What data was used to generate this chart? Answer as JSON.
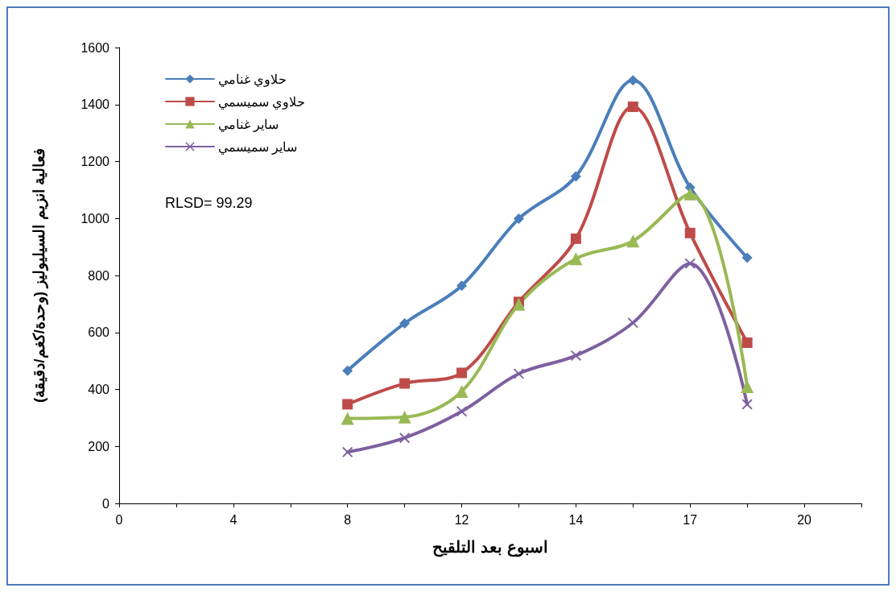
{
  "chart_data": {
    "type": "line",
    "xlabel": "اسبوع بعد التلقيح",
    "ylabel": "فعالية انزيم السيليوليز (وحدة/كغم/دقيقة)",
    "categories": [
      "0",
      null,
      "4",
      null,
      "8",
      null,
      "12",
      null,
      "14",
      null,
      "17",
      null,
      "20",
      null
    ],
    "ylim": [
      0,
      1600
    ],
    "yticks": [
      0,
      200,
      400,
      600,
      800,
      1000,
      1200,
      1400,
      1600
    ],
    "grid": false,
    "legend": "top left",
    "line_style": "solid",
    "annotations": [
      "RLSD= 99.29"
    ],
    "series": [
      {
        "name": "حلاوي غنامي",
        "color": "#4a7ebb",
        "marker": "diamond",
        "values": [
          null,
          null,
          null,
          null,
          466,
          632,
          764,
          999,
          1148,
          1485,
          1109,
          862,
          null,
          null
        ]
      },
      {
        "name": "حلاوي سميسمي",
        "color": "#be4b48",
        "marker": "square",
        "values": [
          null,
          null,
          null,
          null,
          348,
          421,
          458,
          707,
          929,
          1392,
          949,
          564,
          null,
          null
        ]
      },
      {
        "name": "ساير غنامي",
        "color": "#98b954",
        "marker": "triangle",
        "values": [
          null,
          null,
          null,
          null,
          298,
          303,
          393,
          699,
          859,
          921,
          1086,
          410,
          null,
          null
        ]
      },
      {
        "name": "ساير سميسمي",
        "color": "#7d60a0",
        "marker": "cross",
        "values": [
          null,
          null,
          null,
          null,
          180,
          230,
          323,
          455,
          519,
          634,
          842,
          348,
          null,
          null
        ]
      }
    ]
  }
}
